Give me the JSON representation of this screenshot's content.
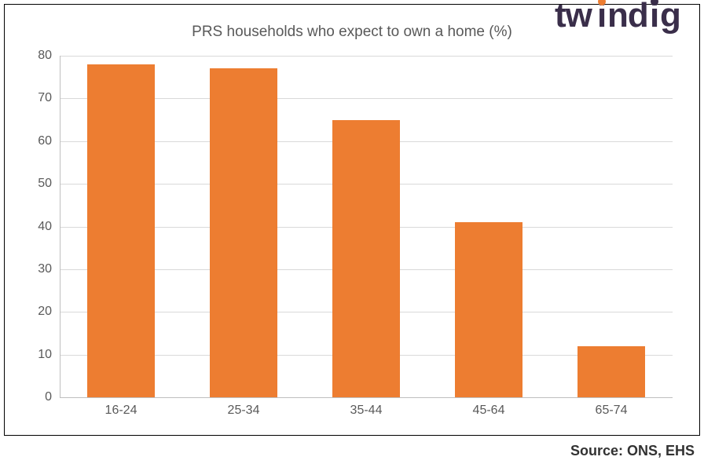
{
  "logo": {
    "text": "twindig",
    "text_color": "#3a2e4a",
    "accent_color": "#ed7d31"
  },
  "chart": {
    "type": "bar",
    "title": "PRS households who expect to own a home (%)",
    "title_fontsize": 19,
    "title_color": "#595959",
    "categories": [
      "16-24",
      "25-34",
      "35-44",
      "45-64",
      "65-74"
    ],
    "values": [
      78,
      77,
      65,
      41,
      12
    ],
    "bar_color": "#ed7d31",
    "ylim": [
      0,
      80
    ],
    "ytick_step": 10,
    "yticks": [
      0,
      10,
      20,
      30,
      40,
      50,
      60,
      70,
      80
    ],
    "grid_color": "#d9d9d9",
    "axis_color": "#bfbfbf",
    "background_color": "#ffffff",
    "label_fontsize": 16,
    "label_color": "#595959",
    "bar_width_ratio": 0.55
  },
  "source": {
    "text": "Source: ONS, EHS",
    "fontsize": 18,
    "color": "#323232"
  }
}
